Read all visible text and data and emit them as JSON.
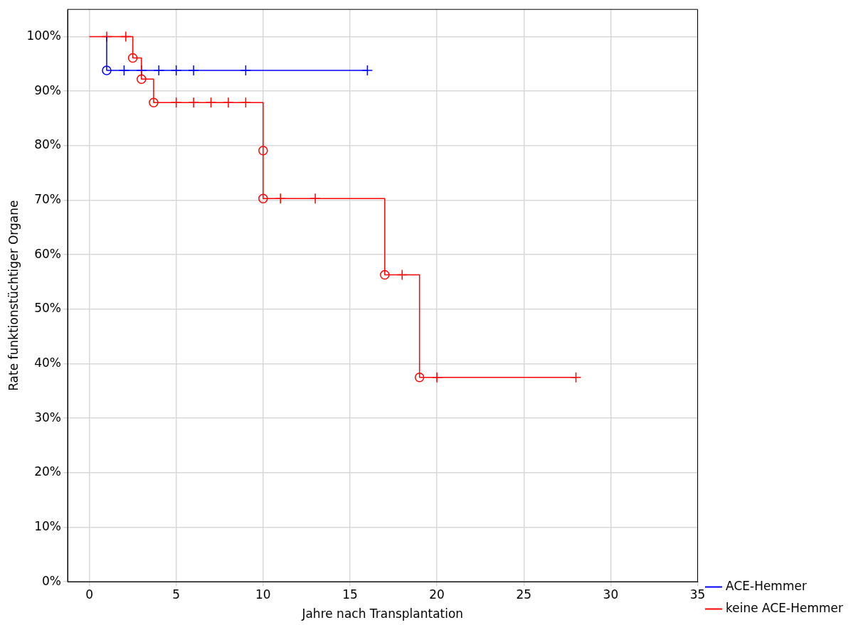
{
  "chart_data": {
    "type": "step",
    "xlabel": "Jahre nach Transplantation",
    "ylabel": "Rate funktionstüchtiger Organe",
    "xlim": [
      -1.25,
      35
    ],
    "xticks": [
      0,
      5,
      10,
      15,
      20,
      25,
      30,
      35
    ],
    "ylim": [
      0,
      105
    ],
    "yticks": [
      {
        "value": 0,
        "label": "0%"
      },
      {
        "value": 10,
        "label": "10%"
      },
      {
        "value": 20,
        "label": "20%"
      },
      {
        "value": 30,
        "label": "30%"
      },
      {
        "value": 40,
        "label": "40%"
      },
      {
        "value": 50,
        "label": "50%"
      },
      {
        "value": 60,
        "label": "60%"
      },
      {
        "value": 70,
        "label": "70%"
      },
      {
        "value": 80,
        "label": "80%"
      },
      {
        "value": 90,
        "label": "90%"
      },
      {
        "value": 100,
        "label": "100%"
      }
    ],
    "grid": true,
    "legend": "bottom right",
    "series": [
      {
        "name": "ACE-Hemmer",
        "type": "step",
        "color": "#0000ff",
        "x": [
          1,
          1,
          16
        ],
        "values": [
          100,
          93.8,
          93.8
        ]
      },
      {
        "name": "keine ACE-Hemmer",
        "type": "step",
        "color": "#ff0000",
        "x": [
          0,
          2.5,
          3,
          3.7,
          10,
          10,
          17,
          19,
          28
        ],
        "values": [
          100,
          96.1,
          92.2,
          87.9,
          79.1,
          70.3,
          56.3,
          37.5,
          37.5
        ]
      },
      {
        "type": "scatter",
        "marker": "circle",
        "color": "#0000ff",
        "x": [
          1
        ],
        "values": [
          93.8
        ]
      },
      {
        "type": "scatter",
        "marker": "cross",
        "color": "#0000ff",
        "x": [
          2,
          3,
          4,
          5,
          6,
          9,
          16
        ],
        "values": [
          93.8,
          93.8,
          93.8,
          93.8,
          93.8,
          93.8,
          93.8
        ]
      },
      {
        "type": "scatter",
        "marker": "circle",
        "color": "#ff0000",
        "x": [
          2.5,
          3,
          3.7,
          10,
          10,
          17,
          19
        ],
        "values": [
          96.1,
          92.2,
          87.9,
          79.1,
          70.3,
          56.3,
          37.5
        ]
      },
      {
        "type": "scatter",
        "marker": "cross",
        "color": "#ff0000",
        "x": [
          1,
          2.1,
          5,
          6,
          7,
          8,
          9,
          11,
          13,
          18,
          20,
          28
        ],
        "values": [
          100,
          100,
          87.9,
          87.9,
          87.9,
          87.9,
          87.9,
          70.3,
          70.3,
          56.3,
          37.5,
          37.5
        ]
      }
    ]
  }
}
